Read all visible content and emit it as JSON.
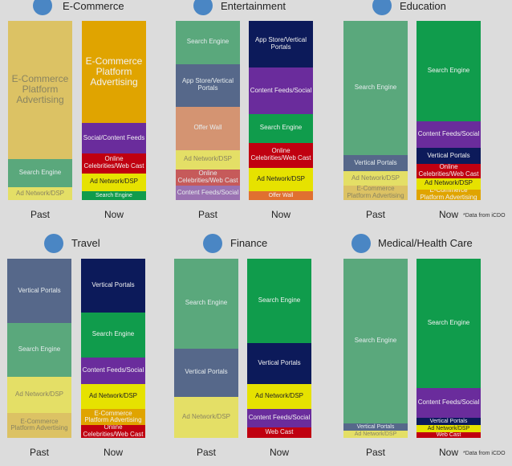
{
  "footnote": "*Data from iCDO",
  "colors": {
    "background": "#dcdcdc",
    "marker": "#4a86c4"
  },
  "chart_data": [
    {
      "type": "bar",
      "stacked": true,
      "unit": "share of bar height (%)",
      "title": "E-Commerce",
      "categories": [
        "Past",
        "Now"
      ],
      "bars": [
        {
          "label": "Past",
          "segments": [
            {
              "label": "E-Commerce Platform Advertising",
              "value": 77,
              "color": "#dcc264"
            },
            {
              "label": "Search Engine",
              "value": 16,
              "color": "#5aa87c"
            },
            {
              "label": "Ad Network/DSP",
              "value": 7,
              "color": "#e4df66"
            }
          ]
        },
        {
          "label": "Now",
          "segments": [
            {
              "label": "E-Commerce Platform Advertising",
              "value": 57,
              "color": "#e0a400"
            },
            {
              "label": "Social/Content Feeds",
              "value": 17,
              "color": "#6a2c9c"
            },
            {
              "label": "Online Celebrities/Web Cast",
              "value": 11,
              "color": "#c00010"
            },
            {
              "label": "Ad Network/DSP",
              "value": 10,
              "color": "#e6e200"
            },
            {
              "label": "Search Engine",
              "value": 5,
              "color": "#109c4c"
            }
          ]
        }
      ]
    },
    {
      "type": "bar",
      "stacked": true,
      "unit": "share of bar height (%)",
      "title": "Entertainment",
      "categories": [
        "Past",
        "Now"
      ],
      "bars": [
        {
          "label": "Past",
          "segments": [
            {
              "label": "Search Engine",
              "value": 24,
              "color": "#5aa87c"
            },
            {
              "label": "App Store/Vertical Portals",
              "value": 24,
              "color": "#56688a"
            },
            {
              "label": "Offer Wall",
              "value": 24,
              "color": "#d49472"
            },
            {
              "label": "Ad Network/DSP",
              "value": 11,
              "color": "#e4df66"
            },
            {
              "label": "Online Celebrities/Web Cast",
              "value": 9,
              "color": "#c65a5a"
            },
            {
              "label": "Content Feeds/Social",
              "value": 8,
              "color": "#9a72b2"
            }
          ]
        },
        {
          "label": "Now",
          "segments": [
            {
              "label": "App Store/Vertical Portals",
              "value": 26,
              "color": "#0c1a5a"
            },
            {
              "label": "Content Feeds/Social",
              "value": 26,
              "color": "#6a2c9c"
            },
            {
              "label": "Search Engine",
              "value": 16,
              "color": "#109c4c"
            },
            {
              "label": "Online Celebrities/Web Cast",
              "value": 14,
              "color": "#c00010"
            },
            {
              "label": "Ad Network/DSP",
              "value": 13,
              "color": "#e6e200"
            },
            {
              "label": "Offer Wall",
              "value": 5,
              "color": "#e07030"
            }
          ]
        }
      ]
    },
    {
      "type": "bar",
      "stacked": true,
      "unit": "share of bar height (%)",
      "title": "Education",
      "categories": [
        "Past",
        "Now"
      ],
      "bars": [
        {
          "label": "Past",
          "segments": [
            {
              "label": "Search Engine",
              "value": 75,
              "color": "#5aa87c"
            },
            {
              "label": "Vertical Portals",
              "value": 9,
              "color": "#56688a"
            },
            {
              "label": "Ad Network/DSP",
              "value": 8,
              "color": "#e4df66"
            },
            {
              "label": "E-Commerce Platform Advertising",
              "value": 8,
              "color": "#dcc264"
            }
          ]
        },
        {
          "label": "Now",
          "segments": [
            {
              "label": "Search Engine",
              "value": 56,
              "color": "#109c4c"
            },
            {
              "label": "Content Feeds/Social",
              "value": 15,
              "color": "#6a2c9c"
            },
            {
              "label": "Vertical Portals",
              "value": 9,
              "color": "#0c1a5a"
            },
            {
              "label": "Online Celebrities/Web Cast",
              "value": 8,
              "color": "#c00010"
            },
            {
              "label": "Ad Network/DSP",
              "value": 6,
              "color": "#e6e200"
            },
            {
              "label": "E-Commerce Platform Advertising",
              "value": 6,
              "color": "#e0a400"
            }
          ]
        }
      ]
    },
    {
      "type": "bar",
      "stacked": true,
      "unit": "share of bar height (%)",
      "title": "Travel",
      "categories": [
        "Past",
        "Now"
      ],
      "bars": [
        {
          "label": "Past",
          "segments": [
            {
              "label": "Vertical Portals",
              "value": 36,
              "color": "#56688a"
            },
            {
              "label": "Search Engine",
              "value": 30,
              "color": "#5aa87c"
            },
            {
              "label": "Ad Network/DSP",
              "value": 20,
              "color": "#e4df66"
            },
            {
              "label": "E-Commerce Platform Advertising",
              "value": 14,
              "color": "#dcc264"
            }
          ]
        },
        {
          "label": "Now",
          "segments": [
            {
              "label": "Vertical Portals",
              "value": 30,
              "color": "#0c1a5a"
            },
            {
              "label": "Search Engine",
              "value": 25,
              "color": "#109c4c"
            },
            {
              "label": "Content Feeds/Social",
              "value": 15,
              "color": "#6a2c9c"
            },
            {
              "label": "Ad Network/DSP",
              "value": 14,
              "color": "#e6e200"
            },
            {
              "label": "E-Commerce Platform Advertising",
              "value": 9,
              "color": "#e0a400"
            },
            {
              "label": "Online Celebrities/Web Cast",
              "value": 7,
              "color": "#c00010"
            }
          ]
        }
      ]
    },
    {
      "type": "bar",
      "stacked": true,
      "unit": "share of bar height (%)",
      "title": "Finance",
      "categories": [
        "Past",
        "Now"
      ],
      "bars": [
        {
          "label": "Past",
          "segments": [
            {
              "label": "Search Engine",
              "value": 50,
              "color": "#5aa87c"
            },
            {
              "label": "Vertical Portals",
              "value": 27,
              "color": "#56688a"
            },
            {
              "label": "Ad Network/DSP",
              "value": 23,
              "color": "#e4df66"
            }
          ]
        },
        {
          "label": "Now",
          "segments": [
            {
              "label": "Search Engine",
              "value": 47,
              "color": "#109c4c"
            },
            {
              "label": "Vertical Portals",
              "value": 23,
              "color": "#0c1a5a"
            },
            {
              "label": "Ad Network/DSP",
              "value": 14,
              "color": "#e6e200"
            },
            {
              "label": "Content Feeds/Social",
              "value": 10,
              "color": "#6a2c9c"
            },
            {
              "label": "Web Cast",
              "value": 6,
              "color": "#c00010"
            }
          ]
        }
      ]
    },
    {
      "type": "bar",
      "stacked": true,
      "unit": "share of bar height (%)",
      "title": "Medical/Health Care",
      "categories": [
        "Past",
        "Now"
      ],
      "bars": [
        {
          "label": "Past",
          "segments": [
            {
              "label": "Search Engine",
              "value": 92,
              "color": "#5aa87c"
            },
            {
              "label": "Vertical Portals",
              "value": 4,
              "color": "#56688a"
            },
            {
              "label": "Ad Network/DSP",
              "value": 4,
              "color": "#e4df66"
            }
          ]
        },
        {
          "label": "Now",
          "segments": [
            {
              "label": "Search Engine",
              "value": 72,
              "color": "#109c4c"
            },
            {
              "label": "Content Feeds/Social",
              "value": 17,
              "color": "#6a2c9c"
            },
            {
              "label": "Vertical Portals",
              "value": 4,
              "color": "#0c1a5a"
            },
            {
              "label": "Ad Network/DSP",
              "value": 4,
              "color": "#e6e200"
            },
            {
              "label": "Web Cast",
              "value": 3,
              "color": "#c00010"
            }
          ]
        }
      ]
    }
  ]
}
